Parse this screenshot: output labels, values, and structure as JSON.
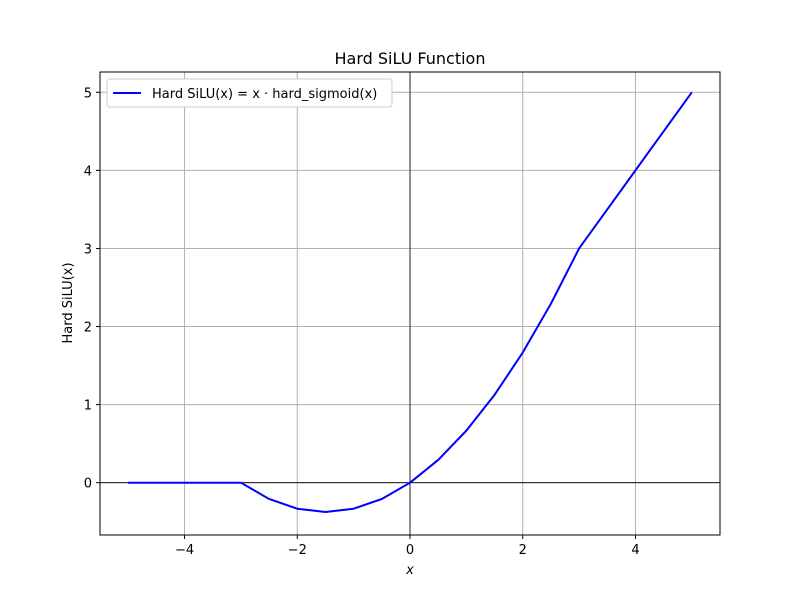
{
  "chart_data": {
    "type": "line",
    "title": "Hard SiLU Function",
    "xlabel": "x",
    "ylabel": "Hard SiLU(x)",
    "xlim": [
      -5.5,
      5.5
    ],
    "ylim": [
      -0.67,
      5.26
    ],
    "xticks": [
      -4,
      -2,
      0,
      2,
      4
    ],
    "yticks": [
      0,
      1,
      2,
      3,
      4,
      5
    ],
    "xtick_labels": [
      "−4",
      "−2",
      "0",
      "2",
      "4"
    ],
    "ytick_labels": [
      "0",
      "1",
      "2",
      "3",
      "4",
      "5"
    ],
    "grid": true,
    "zero_lines": true,
    "legend": {
      "placement": "top-left",
      "label": "Hard SiLU(x) = x · hard_sigmoid(x)"
    },
    "series": [
      {
        "name": "Hard SiLU(x) = x · hard_sigmoid(x)",
        "color": "#0000ff",
        "x": [
          -5,
          -4,
          -3,
          -2.5,
          -2,
          -1.5,
          -1,
          -0.5,
          0,
          0.5,
          1,
          1.5,
          2,
          2.5,
          3,
          3.5,
          4,
          4.5,
          5
        ],
        "y": [
          0,
          0,
          0,
          -0.2083,
          -0.3333,
          -0.375,
          -0.3333,
          -0.2083,
          0,
          0.2917,
          0.6667,
          1.125,
          1.6667,
          2.2917,
          3,
          3.5,
          4,
          4.5,
          5
        ]
      }
    ]
  }
}
